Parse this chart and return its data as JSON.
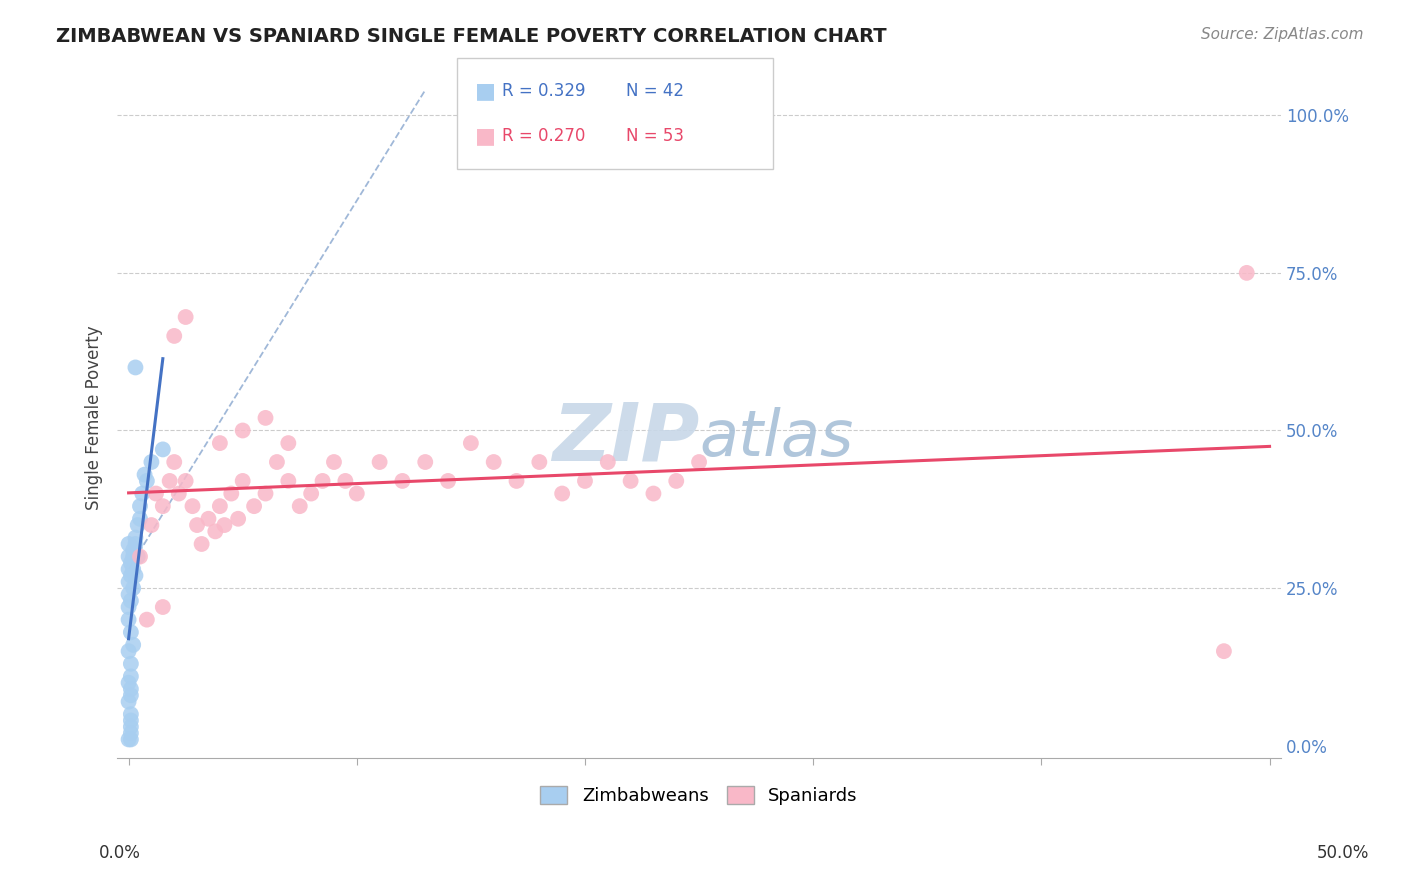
{
  "title": "ZIMBABWEAN VS SPANIARD SINGLE FEMALE POVERTY CORRELATION CHART",
  "source": "Source: ZipAtlas.com",
  "ylabel": "Single Female Poverty",
  "legend_zim": {
    "R": 0.329,
    "N": 42
  },
  "legend_spa": {
    "R": 0.27,
    "N": 53
  },
  "color_zim": "#A8CEF0",
  "color_spa": "#F9B8C8",
  "trendline_zim": "#4472C4",
  "trendline_spa": "#E8486A",
  "ref_line_color": "#A0B8D8",
  "background_color": "#FFFFFF",
  "zim_scatter": [
    [
      0.0,
      0.3
    ],
    [
      0.0,
      0.28
    ],
    [
      0.0,
      0.26
    ],
    [
      0.001,
      0.27
    ],
    [
      0.0,
      0.22
    ],
    [
      0.0,
      0.24
    ],
    [
      0.001,
      0.23
    ],
    [
      0.0,
      0.2
    ],
    [
      0.001,
      0.18
    ],
    [
      0.0,
      0.15
    ],
    [
      0.001,
      0.13
    ],
    [
      0.0,
      0.1
    ],
    [
      0.001,
      0.08
    ],
    [
      0.0,
      0.07
    ],
    [
      0.001,
      0.05
    ],
    [
      0.001,
      0.04
    ],
    [
      0.001,
      0.03
    ],
    [
      0.001,
      0.02
    ],
    [
      0.001,
      0.01
    ],
    [
      0.0,
      0.01
    ],
    [
      0.002,
      0.28
    ],
    [
      0.002,
      0.3
    ],
    [
      0.003,
      0.32
    ],
    [
      0.002,
      0.25
    ],
    [
      0.003,
      0.27
    ],
    [
      0.004,
      0.3
    ],
    [
      0.004,
      0.35
    ],
    [
      0.003,
      0.33
    ],
    [
      0.005,
      0.38
    ],
    [
      0.005,
      0.36
    ],
    [
      0.006,
      0.4
    ],
    [
      0.007,
      0.43
    ],
    [
      0.008,
      0.42
    ],
    [
      0.003,
      0.6
    ],
    [
      0.0,
      0.32
    ],
    [
      0.001,
      0.29
    ],
    [
      0.002,
      0.31
    ],
    [
      0.01,
      0.45
    ],
    [
      0.015,
      0.47
    ],
    [
      0.002,
      0.16
    ],
    [
      0.001,
      0.11
    ],
    [
      0.001,
      0.09
    ]
  ],
  "spa_scatter": [
    [
      0.005,
      0.3
    ],
    [
      0.01,
      0.35
    ],
    [
      0.012,
      0.4
    ],
    [
      0.015,
      0.38
    ],
    [
      0.018,
      0.42
    ],
    [
      0.02,
      0.45
    ],
    [
      0.022,
      0.4
    ],
    [
      0.025,
      0.42
    ],
    [
      0.028,
      0.38
    ],
    [
      0.03,
      0.35
    ],
    [
      0.032,
      0.32
    ],
    [
      0.035,
      0.36
    ],
    [
      0.038,
      0.34
    ],
    [
      0.04,
      0.38
    ],
    [
      0.042,
      0.35
    ],
    [
      0.045,
      0.4
    ],
    [
      0.048,
      0.36
    ],
    [
      0.05,
      0.42
    ],
    [
      0.055,
      0.38
    ],
    [
      0.06,
      0.4
    ],
    [
      0.065,
      0.45
    ],
    [
      0.07,
      0.42
    ],
    [
      0.075,
      0.38
    ],
    [
      0.08,
      0.4
    ],
    [
      0.085,
      0.42
    ],
    [
      0.09,
      0.45
    ],
    [
      0.095,
      0.42
    ],
    [
      0.1,
      0.4
    ],
    [
      0.11,
      0.45
    ],
    [
      0.12,
      0.42
    ],
    [
      0.13,
      0.45
    ],
    [
      0.14,
      0.42
    ],
    [
      0.15,
      0.48
    ],
    [
      0.16,
      0.45
    ],
    [
      0.17,
      0.42
    ],
    [
      0.18,
      0.45
    ],
    [
      0.19,
      0.4
    ],
    [
      0.2,
      0.42
    ],
    [
      0.21,
      0.45
    ],
    [
      0.22,
      0.42
    ],
    [
      0.23,
      0.4
    ],
    [
      0.24,
      0.42
    ],
    [
      0.25,
      0.45
    ],
    [
      0.02,
      0.65
    ],
    [
      0.025,
      0.68
    ],
    [
      0.04,
      0.48
    ],
    [
      0.05,
      0.5
    ],
    [
      0.06,
      0.52
    ],
    [
      0.008,
      0.2
    ],
    [
      0.015,
      0.22
    ],
    [
      0.07,
      0.48
    ],
    [
      0.49,
      0.75
    ],
    [
      0.48,
      0.15
    ]
  ],
  "xmin": -0.005,
  "xmax": 0.505,
  "ymin": -0.02,
  "ymax": 1.06,
  "yticks": [
    0.0,
    0.25,
    0.5,
    0.75,
    1.0
  ],
  "ytick_labels": [
    "0.0%",
    "25.0%",
    "50.0%",
    "75.0%",
    "100.0%"
  ],
  "xtick_labels_show": [
    "0.0%",
    "50.0%"
  ],
  "watermark_zip": "ZIP",
  "watermark_atlas": "atlas",
  "watermark_zip_color": "#C8D8E8",
  "watermark_atlas_color": "#A8C0D8"
}
